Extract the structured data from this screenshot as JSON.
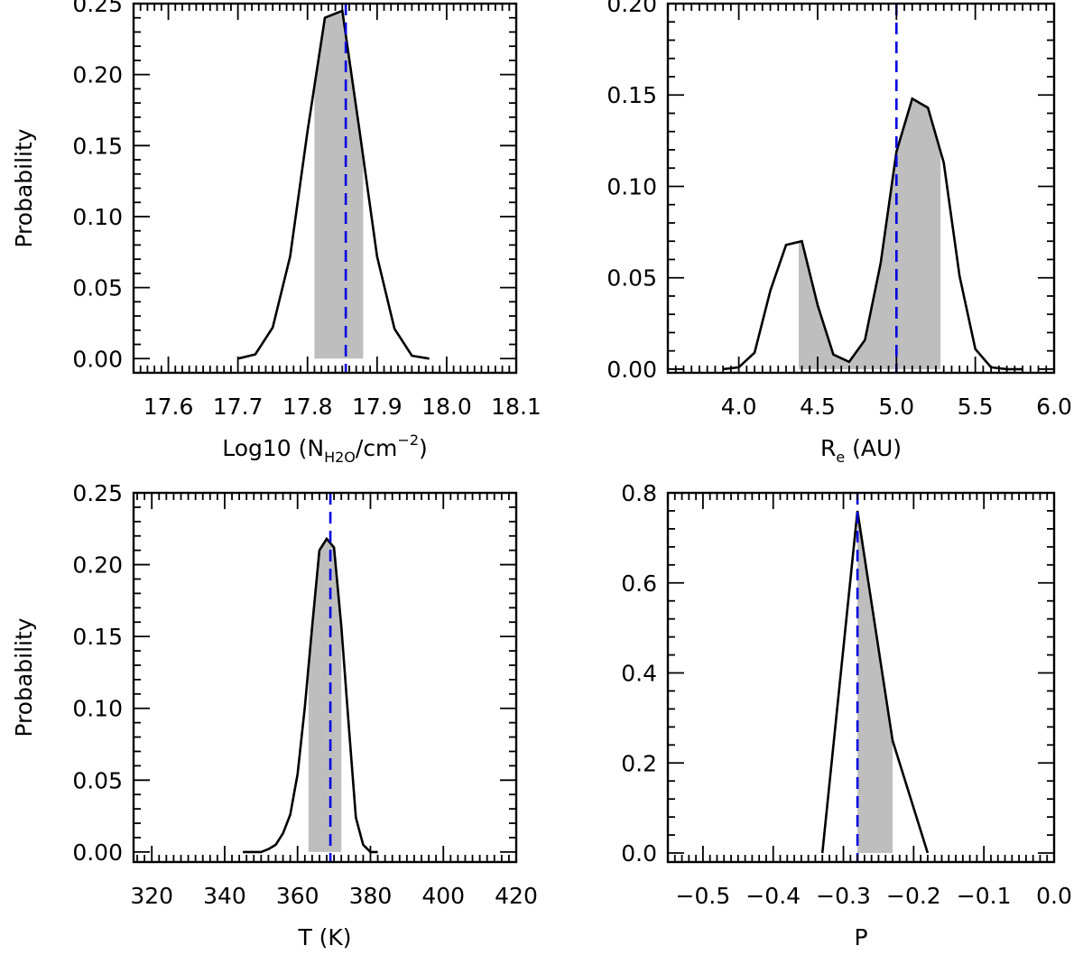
{
  "colors": {
    "curve": "#000000",
    "shade": "#bebebe",
    "marker": "#0000e0",
    "axes": "#000000",
    "background": "#ffffff"
  },
  "chart_data": [
    {
      "type": "line",
      "panel": "top-left",
      "xlabel": {
        "main": "Log10 (N",
        "sub": "H2O",
        "mid": "/cm",
        "sup": "−2",
        "tail": ")"
      },
      "ylabel": "Probability",
      "xlim": [
        17.55,
        18.1
      ],
      "ylim": [
        -0.01,
        0.25
      ],
      "xticks": [
        17.6,
        17.7,
        17.8,
        17.9,
        18.0,
        18.1
      ],
      "xtick_labels": [
        "17.6",
        "17.7",
        "17.8",
        "17.9",
        "18.0",
        "18.1"
      ],
      "yticks": [
        0.0,
        0.05,
        0.1,
        0.15,
        0.2,
        0.25
      ],
      "ytick_labels": [
        "0.00",
        "0.05",
        "0.10",
        "0.15",
        "0.20",
        "0.25"
      ],
      "x": [
        17.7,
        17.725,
        17.75,
        17.775,
        17.8,
        17.825,
        17.85,
        17.875,
        17.9,
        17.925,
        17.95,
        17.975
      ],
      "y": [
        0.0,
        0.003,
        0.022,
        0.072,
        0.16,
        0.24,
        0.245,
        0.16,
        0.072,
        0.021,
        0.002,
        0.0
      ],
      "shade_range": [
        17.81,
        17.88
      ],
      "best_fit": 17.855
    },
    {
      "type": "line",
      "panel": "top-right",
      "xlabel": {
        "main": "R",
        "sub": "e",
        "tail": " (AU)"
      },
      "ylabel": "",
      "xlim": [
        3.55,
        6.0
      ],
      "ylim": [
        -0.002,
        0.2
      ],
      "xticks": [
        4.0,
        4.5,
        5.0,
        5.5,
        6.0
      ],
      "xtick_labels": [
        "4.0",
        "4.5",
        "5.0",
        "5.5",
        "6.0"
      ],
      "yticks": [
        0.0,
        0.05,
        0.1,
        0.15,
        0.2
      ],
      "ytick_labels": [
        "0.00",
        "0.05",
        "0.10",
        "0.15",
        "0.20"
      ],
      "x": [
        3.9,
        4.0,
        4.1,
        4.2,
        4.3,
        4.4,
        4.5,
        4.6,
        4.7,
        4.8,
        4.9,
        5.0,
        5.1,
        5.2,
        5.3,
        5.4,
        5.5,
        5.6,
        5.7,
        5.8
      ],
      "y": [
        0.0,
        0.001,
        0.009,
        0.043,
        0.068,
        0.07,
        0.035,
        0.008,
        0.004,
        0.016,
        0.058,
        0.119,
        0.148,
        0.143,
        0.113,
        0.051,
        0.011,
        0.001,
        0.0,
        0.0
      ],
      "shade_range": [
        4.38,
        5.28
      ],
      "best_fit": 5.0
    },
    {
      "type": "line",
      "panel": "bottom-left",
      "xlabel": {
        "main": "T (K)"
      },
      "ylabel": "Probability",
      "xlim": [
        315,
        420
      ],
      "ylim": [
        -0.007,
        0.25
      ],
      "xticks": [
        320,
        340,
        360,
        380,
        400,
        420
      ],
      "xtick_labels": [
        "320",
        "340",
        "360",
        "380",
        "400",
        "420"
      ],
      "yticks": [
        0.0,
        0.05,
        0.1,
        0.15,
        0.2,
        0.25
      ],
      "ytick_labels": [
        "0.00",
        "0.05",
        "0.10",
        "0.15",
        "0.20",
        "0.25"
      ],
      "x": [
        345,
        350,
        352,
        354,
        356,
        358,
        360,
        362,
        364,
        366,
        368,
        370,
        372,
        374,
        376,
        378,
        380,
        382
      ],
      "y": [
        0.0,
        0.0,
        0.002,
        0.005,
        0.013,
        0.026,
        0.054,
        0.101,
        0.157,
        0.21,
        0.218,
        0.212,
        0.157,
        0.09,
        0.024,
        0.005,
        0.0,
        0.0
      ],
      "shade_range": [
        363,
        372
      ],
      "best_fit": 369
    },
    {
      "type": "line",
      "panel": "bottom-right",
      "xlabel": {
        "main": "P"
      },
      "ylabel": "",
      "xlim": [
        -0.55,
        0.0
      ],
      "ylim": [
        -0.02,
        0.8
      ],
      "xticks": [
        -0.5,
        -0.4,
        -0.3,
        -0.2,
        -0.1,
        0.0
      ],
      "xtick_labels": [
        "−0.5",
        "−0.4",
        "−0.3",
        "−0.2",
        "−0.1",
        "0.0"
      ],
      "yticks": [
        0.0,
        0.2,
        0.4,
        0.6,
        0.8
      ],
      "ytick_labels": [
        "0.0",
        "0.2",
        "0.4",
        "0.6",
        "0.8"
      ],
      "x": [
        -0.33,
        -0.28,
        -0.23,
        -0.18
      ],
      "y": [
        0.0,
        0.76,
        0.25,
        0.0
      ],
      "shade_range": [
        -0.28,
        -0.23
      ],
      "best_fit": -0.28
    }
  ]
}
